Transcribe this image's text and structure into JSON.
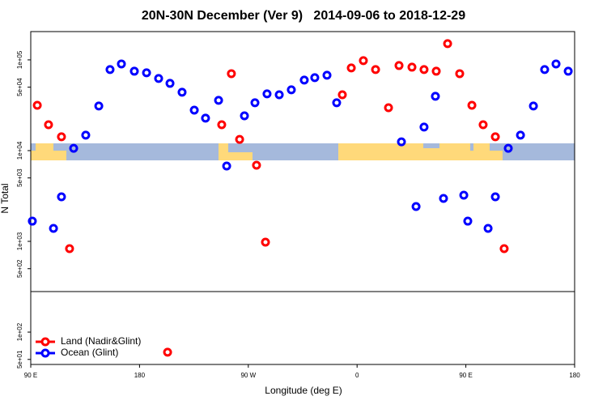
{
  "chart_data": {
    "type": "scatter",
    "title": "20N-30N December (Ver 9)   2014-09-06 to 2018-12-29",
    "x_label": "Longitude (deg E)",
    "y_label": "N Total",
    "xlim": [
      90,
      540
    ],
    "xticks": [
      {
        "value": 90,
        "label": "90 E"
      },
      {
        "value": 180,
        "label": "180"
      },
      {
        "value": 270,
        "label": "90 W"
      },
      {
        "value": 360,
        "label": "0"
      },
      {
        "value": 450,
        "label": "90 E"
      },
      {
        "value": 540,
        "label": "180"
      }
    ],
    "ylim": [
      44,
      205000
    ],
    "log_y": true,
    "yticks": [
      {
        "value": 100000,
        "label": "1e+05"
      },
      {
        "value": 50000,
        "label": "5e+04"
      },
      {
        "value": 10000,
        "label": "1e+04"
      },
      {
        "value": 5000,
        "label": "5e+03"
      },
      {
        "value": 1000,
        "label": "1e+03"
      },
      {
        "value": 500,
        "label": "5e+02"
      },
      {
        "value": 100,
        "label": "1e+02"
      },
      {
        "value": 50,
        "label": "5e+01"
      }
    ],
    "legend": "lower left",
    "series": [
      {
        "name": "Land (Nadir&Glint)",
        "color": "#ff0000",
        "x": [
          95.4,
          104.7,
          115.4,
          122.1,
          248,
          256,
          262.8,
          276.8,
          284.2,
          347.8,
          355.2,
          365.2,
          375.3,
          386,
          394.7,
          405.4,
          415.4,
          425.5,
          434.9,
          444.9,
          455,
          464.3,
          474.4,
          481.7,
          203.2
        ],
        "values": [
          31600,
          19300,
          14200,
          832,
          19300,
          70500,
          13300,
          6900,
          980,
          41300,
          81500,
          98000,
          78200,
          29700,
          86600,
          83100,
          78200,
          75000,
          151000,
          70500,
          31600,
          19300,
          14200,
          832,
          60
        ]
      },
      {
        "name": "Ocean (Glint)",
        "color": "#0000ff",
        "x": [
          91.3,
          108.8,
          115.4,
          125.5,
          135.5,
          146.3,
          155.6,
          165,
          175.7,
          185.8,
          195.8,
          205.2,
          215.2,
          225.3,
          234.6,
          245.4,
          252.1,
          266.8,
          275.5,
          285.5,
          295.6,
          305.6,
          316.3,
          325,
          335.1,
          343.1,
          396.7,
          408.8,
          415.4,
          424.8,
          431.5,
          448.3,
          451.6,
          468.4,
          474.4,
          485.1,
          495.2,
          505.9,
          515.2,
          524.6,
          534.7
        ],
        "values": [
          1670,
          1390,
          3100,
          10600,
          14800,
          31000,
          78200,
          90200,
          75000,
          72000,
          62400,
          55100,
          44000,
          27900,
          22800,
          35800,
          6760,
          24200,
          33700,
          42200,
          41300,
          46800,
          59900,
          63700,
          67700,
          33700,
          12500,
          2420,
          18200,
          39700,
          2970,
          3230,
          1670,
          1390,
          3100,
          10600,
          14800,
          31000,
          78200,
          90200,
          75000
        ]
      }
    ]
  }
}
